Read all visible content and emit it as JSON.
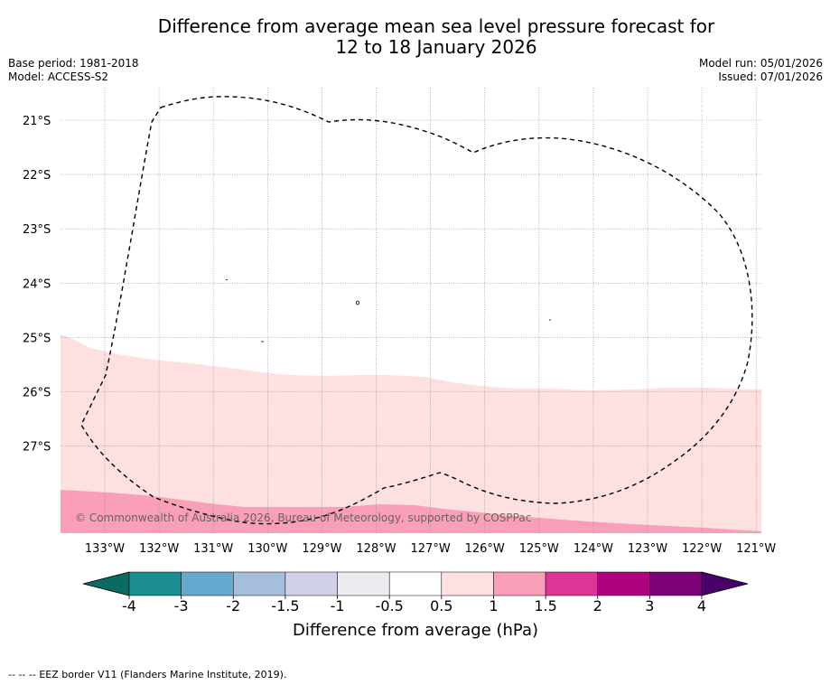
{
  "title": {
    "line1": "Difference from average mean sea level pressure forecast for",
    "line2": "12 to 18 January 2026"
  },
  "meta_left": {
    "base_period": "Base period: 1981-2018",
    "model": "Model: ACCESS-S2"
  },
  "meta_right": {
    "model_run": "Model run: 05/01/2026",
    "issued": "Issued: 07/01/2026"
  },
  "map": {
    "lat_labels": [
      "21°S",
      "22°S",
      "23°S",
      "24°S",
      "25°S",
      "26°S",
      "27°S"
    ],
    "lon_labels": [
      "133°W",
      "132°W",
      "131°W",
      "130°W",
      "129°W",
      "128°W",
      "127°W",
      "126°W",
      "125°W",
      "124°W",
      "123°W",
      "122°W",
      "121°W"
    ],
    "copyright": "© Commonwealth of Australia 2026, Bureau of Meteorology, supported by COSPPac",
    "colors": {
      "band_05_1": "#fde0df",
      "band_1_15": "#f99fb7",
      "eez": "#000000",
      "grid": "#888888"
    }
  },
  "colorbar": {
    "ticks": [
      "-4",
      "-3",
      "-2",
      "-1.5",
      "-1",
      "-0.5",
      "0.5",
      "1",
      "1.5",
      "2",
      "3",
      "4"
    ],
    "colors": [
      "#1b8e94",
      "#66a9cf",
      "#a6bddb",
      "#d0d1e6",
      "#ececf0",
      "#ffffff",
      "#fde0df",
      "#f99fb7",
      "#dd3497",
      "#ae017e",
      "#7a0177"
    ],
    "under_color": "#0a6b62",
    "over_color": "#49006a",
    "label": "Difference from average (hPa)"
  },
  "footer": {
    "legend_symbol": "-- -- --",
    "text": "EEZ border V11 (Flanders Marine Institute, 2019)."
  }
}
